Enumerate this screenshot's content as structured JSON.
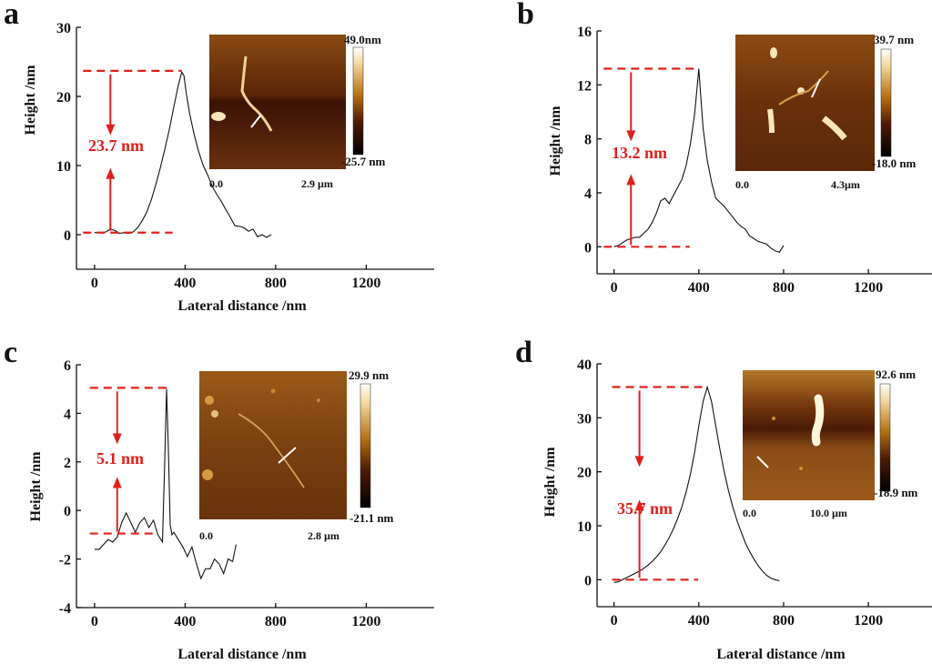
{
  "colors": {
    "annotation": "#e0201b",
    "line": "#111111",
    "afm_dark": "#3a1205",
    "afm_mid": "#8a4a10",
    "afm_bright": "#f4d9a0"
  },
  "chart_data": [
    {
      "panel": "a",
      "type": "line",
      "title": "",
      "xlabel": "Lateral distance /nm",
      "ylabel": "Height /nm",
      "xlim": [
        -80,
        1500
      ],
      "ylim": [
        -5,
        30
      ],
      "xticks": [
        "0",
        "400",
        "800",
        "1200"
      ],
      "yticks": [
        "0",
        "10",
        "20",
        "30"
      ],
      "xtick_values": [
        0,
        400,
        800,
        1200
      ],
      "ytick_values": [
        0,
        10,
        20,
        30
      ],
      "series": [
        {
          "name": "height profile",
          "x": [
            0,
            30,
            50,
            70,
            90,
            110,
            130,
            150,
            170,
            190,
            210,
            230,
            250,
            270,
            290,
            310,
            330,
            350,
            370,
            385,
            395,
            405,
            420,
            440,
            460,
            480,
            500,
            520,
            540,
            560,
            580,
            600,
            620,
            640,
            660,
            680,
            700,
            720,
            740,
            760,
            780
          ],
          "y": [
            0.3,
            0.3,
            0.4,
            0.8,
            0.6,
            0.2,
            0.3,
            0.2,
            0.4,
            1.0,
            2.0,
            3.2,
            5.0,
            7.2,
            9.6,
            12.3,
            15.2,
            18.5,
            21.6,
            23.5,
            23.0,
            20.5,
            17.5,
            14.5,
            12.0,
            10.0,
            8.6,
            7.0,
            5.8,
            4.8,
            3.6,
            2.5,
            1.3,
            1.2,
            1.0,
            0.5,
            0.8,
            -0.3,
            0.0,
            -0.4,
            0.0
          ]
        }
      ],
      "annotation": {
        "label": "23.7 nm",
        "top": 23.7,
        "bottom": 0.3,
        "arrow_x": 70
      },
      "inset": {
        "scale_max": "49.0nm",
        "scale_min": "-25.7 nm",
        "x_start": "0.0",
        "x_end": "2.9 µm"
      }
    },
    {
      "panel": "b",
      "type": "line",
      "title": "",
      "xlabel": "",
      "ylabel": "Height /nm",
      "xlim": [
        -80,
        1500
      ],
      "ylim": [
        -2,
        16
      ],
      "xticks": [
        "0",
        "400",
        "800",
        "1200"
      ],
      "yticks": [
        "0",
        "4",
        "8",
        "12",
        "16"
      ],
      "xtick_values": [
        0,
        400,
        800,
        1200
      ],
      "ytick_values": [
        0,
        4,
        8,
        12,
        16
      ],
      "series": [
        {
          "name": "height profile",
          "x": [
            0,
            20,
            40,
            60,
            80,
            100,
            120,
            140,
            160,
            180,
            200,
            220,
            240,
            260,
            280,
            300,
            320,
            340,
            360,
            380,
            390,
            400,
            410,
            420,
            440,
            460,
            480,
            500,
            520,
            540,
            560,
            580,
            600,
            620,
            640,
            660,
            680,
            700,
            720,
            740,
            760,
            780,
            800
          ],
          "y": [
            0.0,
            0.1,
            0.3,
            0.5,
            0.6,
            0.7,
            0.7,
            1.0,
            1.3,
            1.8,
            2.5,
            3.4,
            3.6,
            3.2,
            3.8,
            4.4,
            5.0,
            6.0,
            7.6,
            9.8,
            11.5,
            13.2,
            11.0,
            8.8,
            6.4,
            4.8,
            3.6,
            3.3,
            3.0,
            2.6,
            2.2,
            1.8,
            1.5,
            1.3,
            0.8,
            0.6,
            0.4,
            0.3,
            0.2,
            -0.1,
            -0.3,
            -0.4,
            0.1
          ]
        }
      ],
      "annotation": {
        "label": "13.2 nm",
        "top": 13.2,
        "bottom": 0.0,
        "arrow_x": 80
      },
      "inset": {
        "scale_max": "39.7 nm",
        "scale_min": "-18.0 nm",
        "x_start": "0.0",
        "x_end": "4.3µm"
      }
    },
    {
      "panel": "c",
      "type": "line",
      "title": "",
      "xlabel": "Lateral distance /nm",
      "ylabel": "Height /nm",
      "xlim": [
        -80,
        1500
      ],
      "ylim": [
        -4,
        6
      ],
      "xticks": [
        "0",
        "400",
        "800",
        "1200"
      ],
      "yticks": [
        "-4",
        "-2",
        "0",
        "2",
        "4",
        "6"
      ],
      "xtick_values": [
        0,
        400,
        800,
        1200
      ],
      "ytick_values": [
        -4,
        -2,
        0,
        2,
        4,
        6
      ],
      "series": [
        {
          "name": "height profile",
          "x": [
            0,
            20,
            40,
            60,
            80,
            100,
            120,
            140,
            160,
            180,
            200,
            220,
            240,
            260,
            280,
            300,
            310,
            318,
            326,
            334,
            342,
            350,
            370,
            390,
            410,
            430,
            450,
            470,
            490,
            510,
            530,
            550,
            570,
            590,
            610,
            625
          ],
          "y": [
            -1.6,
            -1.6,
            -1.4,
            -1.2,
            -1.3,
            -1.1,
            -0.5,
            -0.1,
            -0.5,
            -0.9,
            -0.5,
            -0.3,
            -0.7,
            -0.4,
            -1.0,
            -1.3,
            2.0,
            5.0,
            2.5,
            -0.6,
            -1.0,
            -0.9,
            -1.2,
            -1.5,
            -1.9,
            -1.5,
            -2.2,
            -2.8,
            -2.4,
            -2.4,
            -2.0,
            -2.2,
            -2.6,
            -2.0,
            -2.1,
            -1.4
          ]
        }
      ],
      "annotation": {
        "label": "5.1 nm",
        "top": 5.05,
        "bottom": -0.95,
        "arrow_x": 100
      },
      "inset": {
        "scale_max": "29.9 nm",
        "scale_min": "-21.1 nm",
        "x_start": "0.0",
        "x_end": "2.8 µm"
      }
    },
    {
      "panel": "d",
      "type": "line",
      "title": "",
      "xlabel": "Lateral distance /nm",
      "ylabel": "Height /nm",
      "xlim": [
        -80,
        1500
      ],
      "ylim": [
        -5,
        40
      ],
      "xticks": [
        "0",
        "400",
        "800",
        "1200"
      ],
      "yticks": [
        "0",
        "10",
        "20",
        "30",
        "40"
      ],
      "xtick_values": [
        0,
        400,
        800,
        1200
      ],
      "ytick_values": [
        0,
        10,
        20,
        30,
        40
      ],
      "series": [
        {
          "name": "height profile",
          "x": [
            0,
            20,
            40,
            60,
            80,
            100,
            120,
            140,
            160,
            180,
            200,
            220,
            240,
            260,
            280,
            300,
            320,
            340,
            360,
            380,
            400,
            420,
            440,
            460,
            480,
            500,
            520,
            540,
            560,
            580,
            600,
            620,
            640,
            660,
            680,
            700,
            720,
            740,
            760,
            780
          ],
          "y": [
            -0.5,
            -0.4,
            0.0,
            0.4,
            0.8,
            1.2,
            1.6,
            2.1,
            2.7,
            3.4,
            4.2,
            5.2,
            6.4,
            7.8,
            9.4,
            11.3,
            13.5,
            16.2,
            19.5,
            23.5,
            28.5,
            33.0,
            35.7,
            33.0,
            28.5,
            24.0,
            20.0,
            16.5,
            13.5,
            11.0,
            8.8,
            6.8,
            5.2,
            3.8,
            2.6,
            1.6,
            0.8,
            0.3,
            0.0,
            -0.2
          ]
        }
      ],
      "annotation": {
        "label": "35.7 nm",
        "top": 35.7,
        "bottom": 0.0,
        "arrow_x": 120
      },
      "inset": {
        "scale_max": "92.6 nm",
        "scale_min": "-18.9 nm",
        "x_start": "0.0",
        "x_end": "10.0 µm"
      }
    }
  ]
}
